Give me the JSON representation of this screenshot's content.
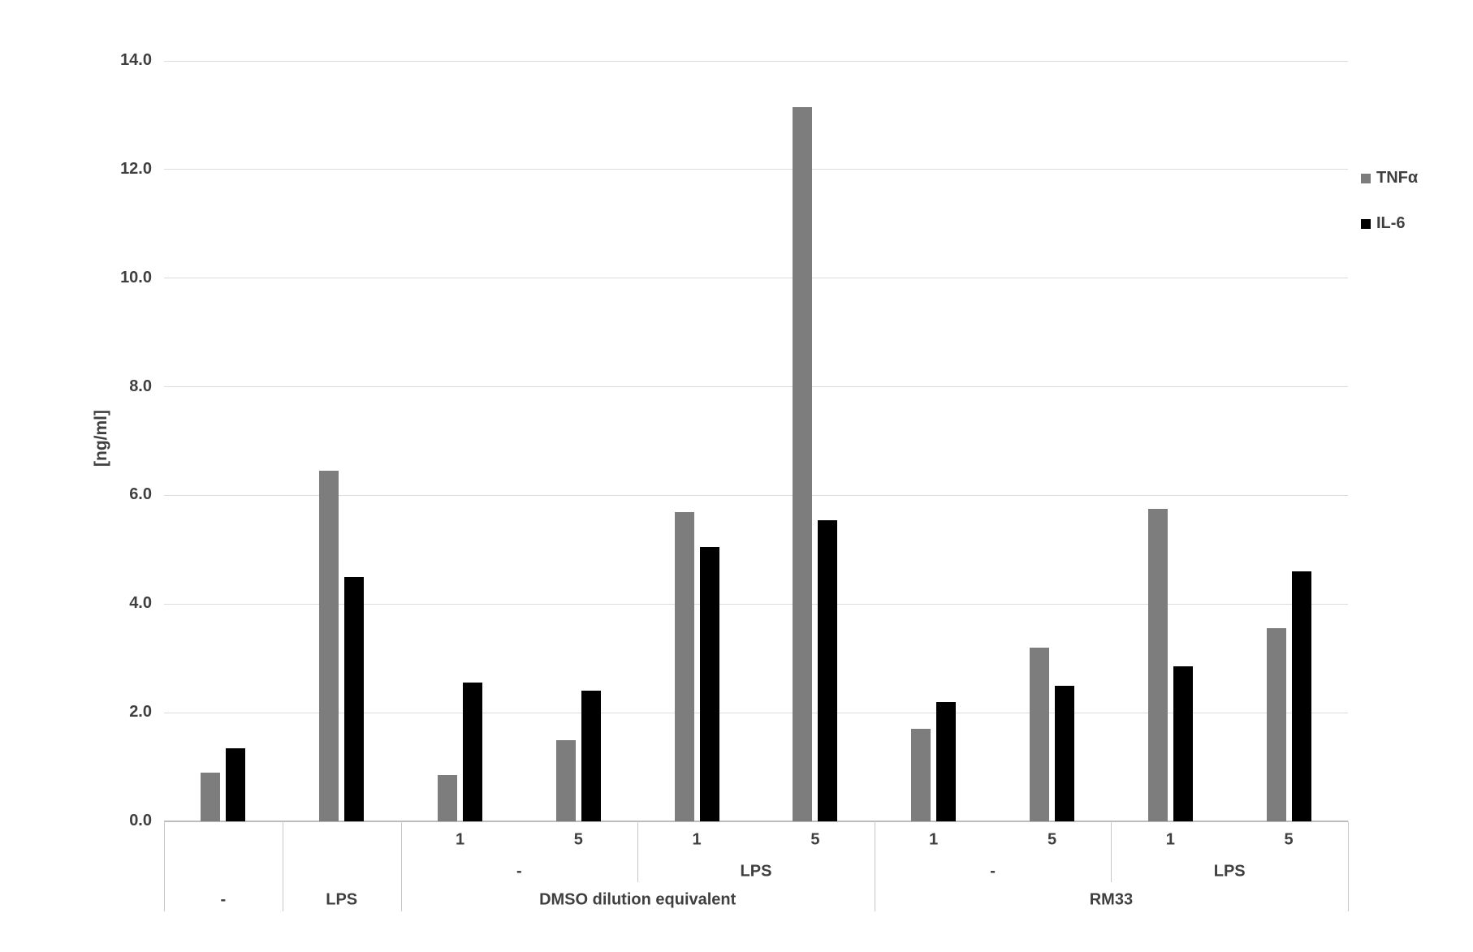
{
  "chart_data": {
    "type": "bar",
    "title": "",
    "ylabel": "[ng/ml]",
    "ylim": [
      0,
      14
    ],
    "ytick_step": 2,
    "ytick_labels": [
      "0.0",
      "2.0",
      "4.0",
      "6.0",
      "8.0",
      "10.0",
      "12.0",
      "14.0"
    ],
    "grid": true,
    "legend_position": "right",
    "series": [
      {
        "name": "TNFα",
        "color": "#7d7d7d",
        "values": [
          0.9,
          6.45,
          0.85,
          1.5,
          5.7,
          13.15,
          1.7,
          3.2,
          5.75,
          3.55
        ]
      },
      {
        "name": "IL-6",
        "color": "#000000",
        "values": [
          1.35,
          4.5,
          2.55,
          2.4,
          5.05,
          5.55,
          2.2,
          2.5,
          2.85,
          4.6
        ]
      }
    ],
    "x_axis_groups": [
      {
        "label": "-"
      },
      {
        "label": "LPS"
      },
      {
        "label": "DMSO dilution equivalent",
        "subgroups": [
          {
            "label": "-",
            "doses": [
              "1",
              "5"
            ]
          },
          {
            "label": "LPS",
            "doses": [
              "1",
              "5"
            ]
          }
        ]
      },
      {
        "label": "RM33",
        "subgroups": [
          {
            "label": "-",
            "doses": [
              "1",
              "5"
            ]
          },
          {
            "label": "LPS",
            "doses": [
              "1",
              "5"
            ]
          }
        ]
      }
    ]
  }
}
